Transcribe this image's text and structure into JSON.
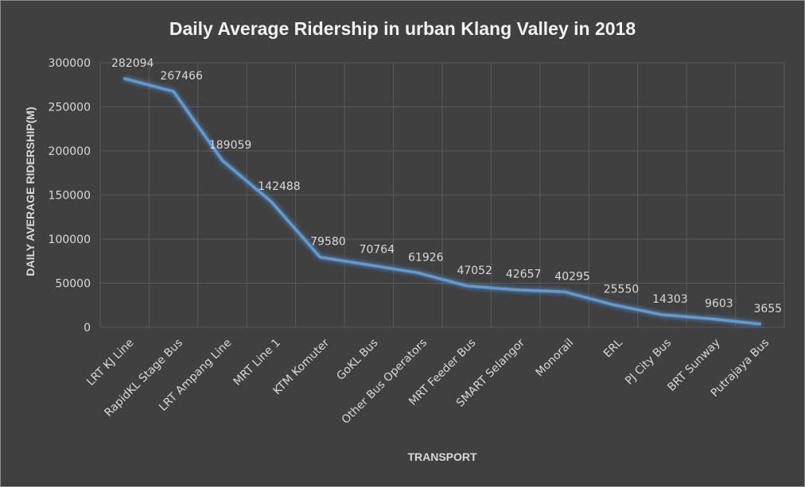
{
  "chart_data": {
    "type": "line",
    "title": "Daily Average Ridership in urban Klang Valley in 2018",
    "xlabel": "TRANSPORT",
    "ylabel": "DAILY AVERAGE RIDERSHIP(M)",
    "ylim": [
      0,
      300000
    ],
    "yticks": [
      "0",
      "50000",
      "100000",
      "150000",
      "200000",
      "250000",
      "300000"
    ],
    "grid": true,
    "legend": "none",
    "categories": [
      "LRT KJ Line",
      "RapidKL Stage Bus",
      "LRT Ampang Line",
      "MRT Line 1",
      "KTM Komuter",
      "GoKL Bus",
      "Other Bus Operators",
      "MRT Feeder Bus",
      "SMART Selangor",
      "Monorail",
      "ERL",
      "PJ City Bus",
      "BRT Sunway",
      "Putrajaya Bus"
    ],
    "series": [
      {
        "values": [
          282094,
          267466,
          189059,
          142488,
          79580,
          70764,
          61926,
          47052,
          42657,
          40295,
          25550,
          14303,
          9603,
          3655
        ],
        "labels": [
          "282094",
          "267466",
          "189059",
          "142488",
          "79580",
          "70764",
          "61926",
          "47052",
          "42657",
          "40295",
          "25550",
          "14303",
          "9603",
          "3655"
        ],
        "color": "#5b9bd5"
      }
    ],
    "colors": {
      "background": "#404040",
      "grid": "#595959",
      "text": "#d9d9d9",
      "title": "#f2f2f2"
    }
  }
}
